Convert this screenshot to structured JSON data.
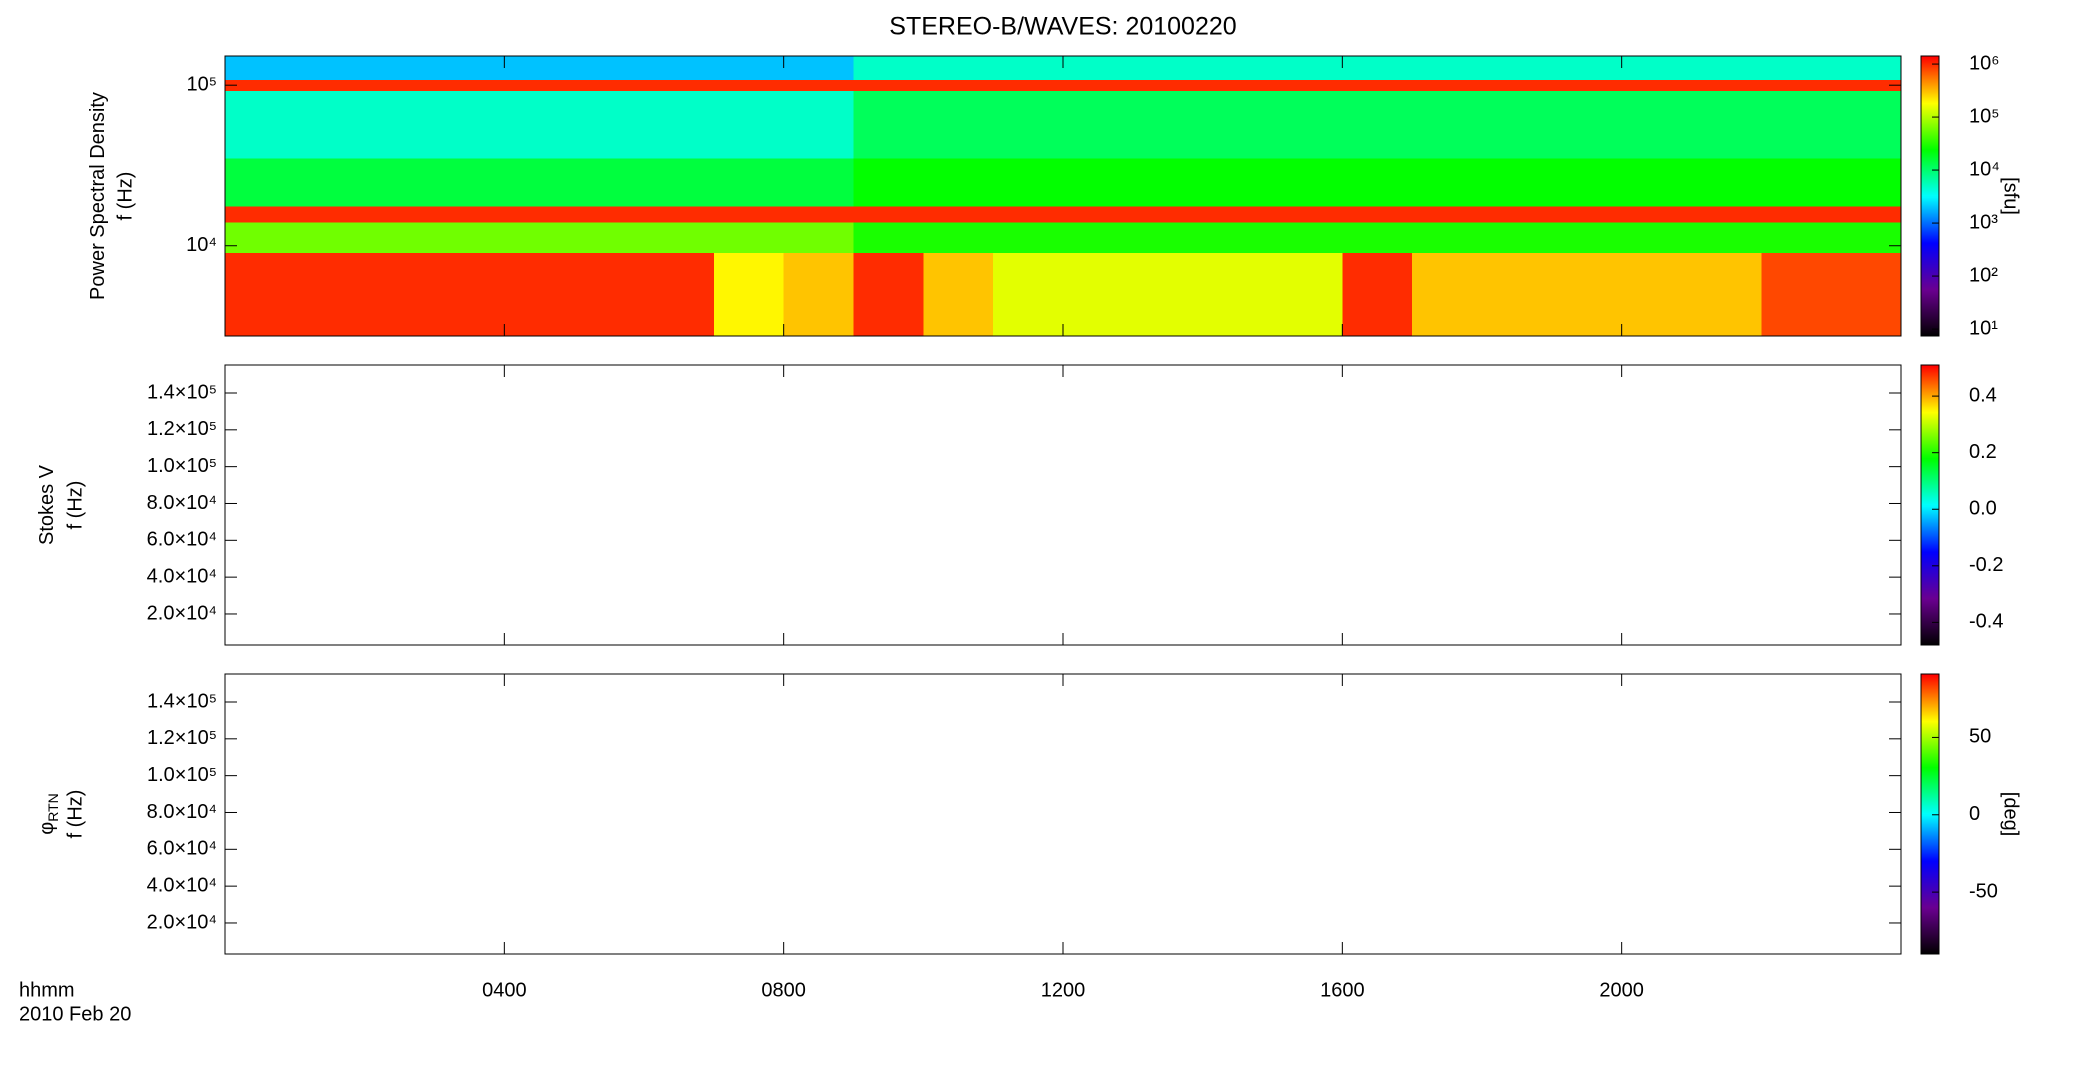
{
  "chart_data": {
    "type": "spectrogram",
    "title": "STEREO-B/WAVES: 20100220",
    "x_label": "hhmm",
    "date": "2010 Feb 20",
    "x": [
      0,
      1,
      2,
      3,
      4,
      5,
      6,
      7,
      8,
      9,
      10,
      11,
      12,
      13,
      14,
      15,
      16,
      17,
      18,
      19,
      20,
      21,
      22,
      23,
      24
    ],
    "xlim": [
      0,
      24
    ],
    "xticks": [
      {
        "value": 4,
        "label": "0400"
      },
      {
        "value": 8,
        "label": "0800"
      },
      {
        "value": 12,
        "label": "1200"
      },
      {
        "value": 16,
        "label": "1600"
      },
      {
        "value": 20,
        "label": "2000"
      }
    ],
    "colormap": [
      "#000000",
      "#6a0090",
      "#0000ff",
      "#00ffff",
      "#00ff00",
      "#ffff00",
      "#ff0000"
    ],
    "panels": [
      {
        "ylabel": "Power Spectral Density",
        "ylabel2": "f (Hz)",
        "yscale": "log",
        "ylim": [
          2740,
          152000
        ],
        "yticks": [
          {
            "value": 10000,
            "label": "10⁴"
          },
          {
            "value": 100000,
            "label": "10⁵"
          }
        ],
        "cscale": "log",
        "clim": [
          7.4,
          1420000
        ],
        "clabel": "[sfu]",
        "cticks": [
          {
            "value": 10,
            "label": "10¹"
          },
          {
            "value": 100,
            "label": "10²"
          },
          {
            "value": 1000,
            "label": "10³"
          },
          {
            "value": 10000,
            "label": "10⁴"
          },
          {
            "value": 100000,
            "label": "10⁵"
          },
          {
            "value": 1000000,
            "label": "10⁶"
          }
        ],
        "y_edges": [
          2740,
          9000,
          14000,
          17500,
          35000,
          92000,
          108000,
          152000
        ],
        "z": [
          [
            1000000,
            1000000,
            1000000,
            1000000,
            1000000,
            1000000,
            1000000,
            200000,
            300000,
            1000000,
            300000,
            150000,
            150000,
            150000,
            150000,
            150000,
            1000000,
            300000,
            300000,
            300000,
            300000,
            300000,
            800000,
            800000
          ],
          [
            60000,
            60000,
            60000,
            60000,
            60000,
            60000,
            60000,
            60000,
            60000,
            30000,
            30000,
            30000,
            30000,
            30000,
            30000,
            30000,
            30000,
            30000,
            30000,
            30000,
            30000,
            30000,
            30000,
            30000
          ],
          [
            1000000,
            1000000,
            1000000,
            1000000,
            1000000,
            1000000,
            1000000,
            1000000,
            1000000,
            1000000,
            1000000,
            1000000,
            1000000,
            1000000,
            1000000,
            1000000,
            1000000,
            1000000,
            1000000,
            1000000,
            1000000,
            1000000,
            1000000,
            1000000
          ],
          [
            15000,
            15000,
            15000,
            15000,
            15000,
            15000,
            15000,
            15000,
            15000,
            25000,
            25000,
            25000,
            25000,
            25000,
            25000,
            25000,
            25000,
            25000,
            25000,
            25000,
            25000,
            25000,
            25000,
            25000
          ],
          [
            5000,
            5000,
            5000,
            5000,
            5000,
            5000,
            5000,
            5000,
            5000,
            12000,
            12000,
            12000,
            12000,
            12000,
            12000,
            12000,
            12000,
            12000,
            12000,
            12000,
            12000,
            12000,
            12000,
            12000
          ],
          [
            1000000,
            1000000,
            1000000,
            1000000,
            1000000,
            1000000,
            1000000,
            1000000,
            1000000,
            1000000,
            1000000,
            1000000,
            1000000,
            1000000,
            1000000,
            1000000,
            1000000,
            1000000,
            1000000,
            1000000,
            1000000,
            1000000,
            1000000,
            1000000
          ],
          [
            2000,
            2000,
            2000,
            2000,
            2000,
            2000,
            2000,
            2000,
            2000,
            5000,
            5000,
            5000,
            5000,
            5000,
            5000,
            5000,
            5000,
            5000,
            5000,
            5000,
            5000,
            5000,
            5000,
            5000
          ]
        ]
      },
      {
        "ylabel": "Stokes V",
        "ylabel2": "f (Hz)",
        "yscale": "linear",
        "ylim": [
          3150,
          155200
        ],
        "yticks": [
          {
            "value": 20000,
            "label": "2.0×10⁴"
          },
          {
            "value": 40000,
            "label": "4.0×10⁴"
          },
          {
            "value": 60000,
            "label": "6.0×10⁴"
          },
          {
            "value": 80000,
            "label": "8.0×10⁴"
          },
          {
            "value": 100000,
            "label": "1.0×10⁵"
          },
          {
            "value": 120000,
            "label": "1.2×10⁵"
          },
          {
            "value": 140000,
            "label": "1.4×10⁵"
          }
        ],
        "cscale": "linear",
        "clim": [
          -0.48,
          0.51
        ],
        "cticks": [
          -0.4,
          -0.2,
          {
            "value": 0,
            "label": "0.0"
          },
          0.2,
          0.4
        ]
      },
      {
        "ylabel": "φ",
        "ylabel_sub": "RTN",
        "ylabel2": "f (Hz)",
        "yscale": "linear",
        "ylim": [
          3150,
          155200
        ],
        "yticks": [
          {
            "value": 20000,
            "label": "2.0×10⁴"
          },
          {
            "value": 40000,
            "label": "4.0×10⁴"
          },
          {
            "value": 60000,
            "label": "6.0×10⁴"
          },
          {
            "value": 80000,
            "label": "8.0×10⁴"
          },
          {
            "value": 100000,
            "label": "1.0×10⁵"
          },
          {
            "value": 120000,
            "label": "1.2×10⁵"
          },
          {
            "value": 140000,
            "label": "1.4×10⁵"
          }
        ],
        "cscale": "linear",
        "clim": [
          -90,
          91
        ],
        "clabel": "[deg]",
        "cticks": [
          -50,
          0,
          50
        ]
      }
    ]
  }
}
